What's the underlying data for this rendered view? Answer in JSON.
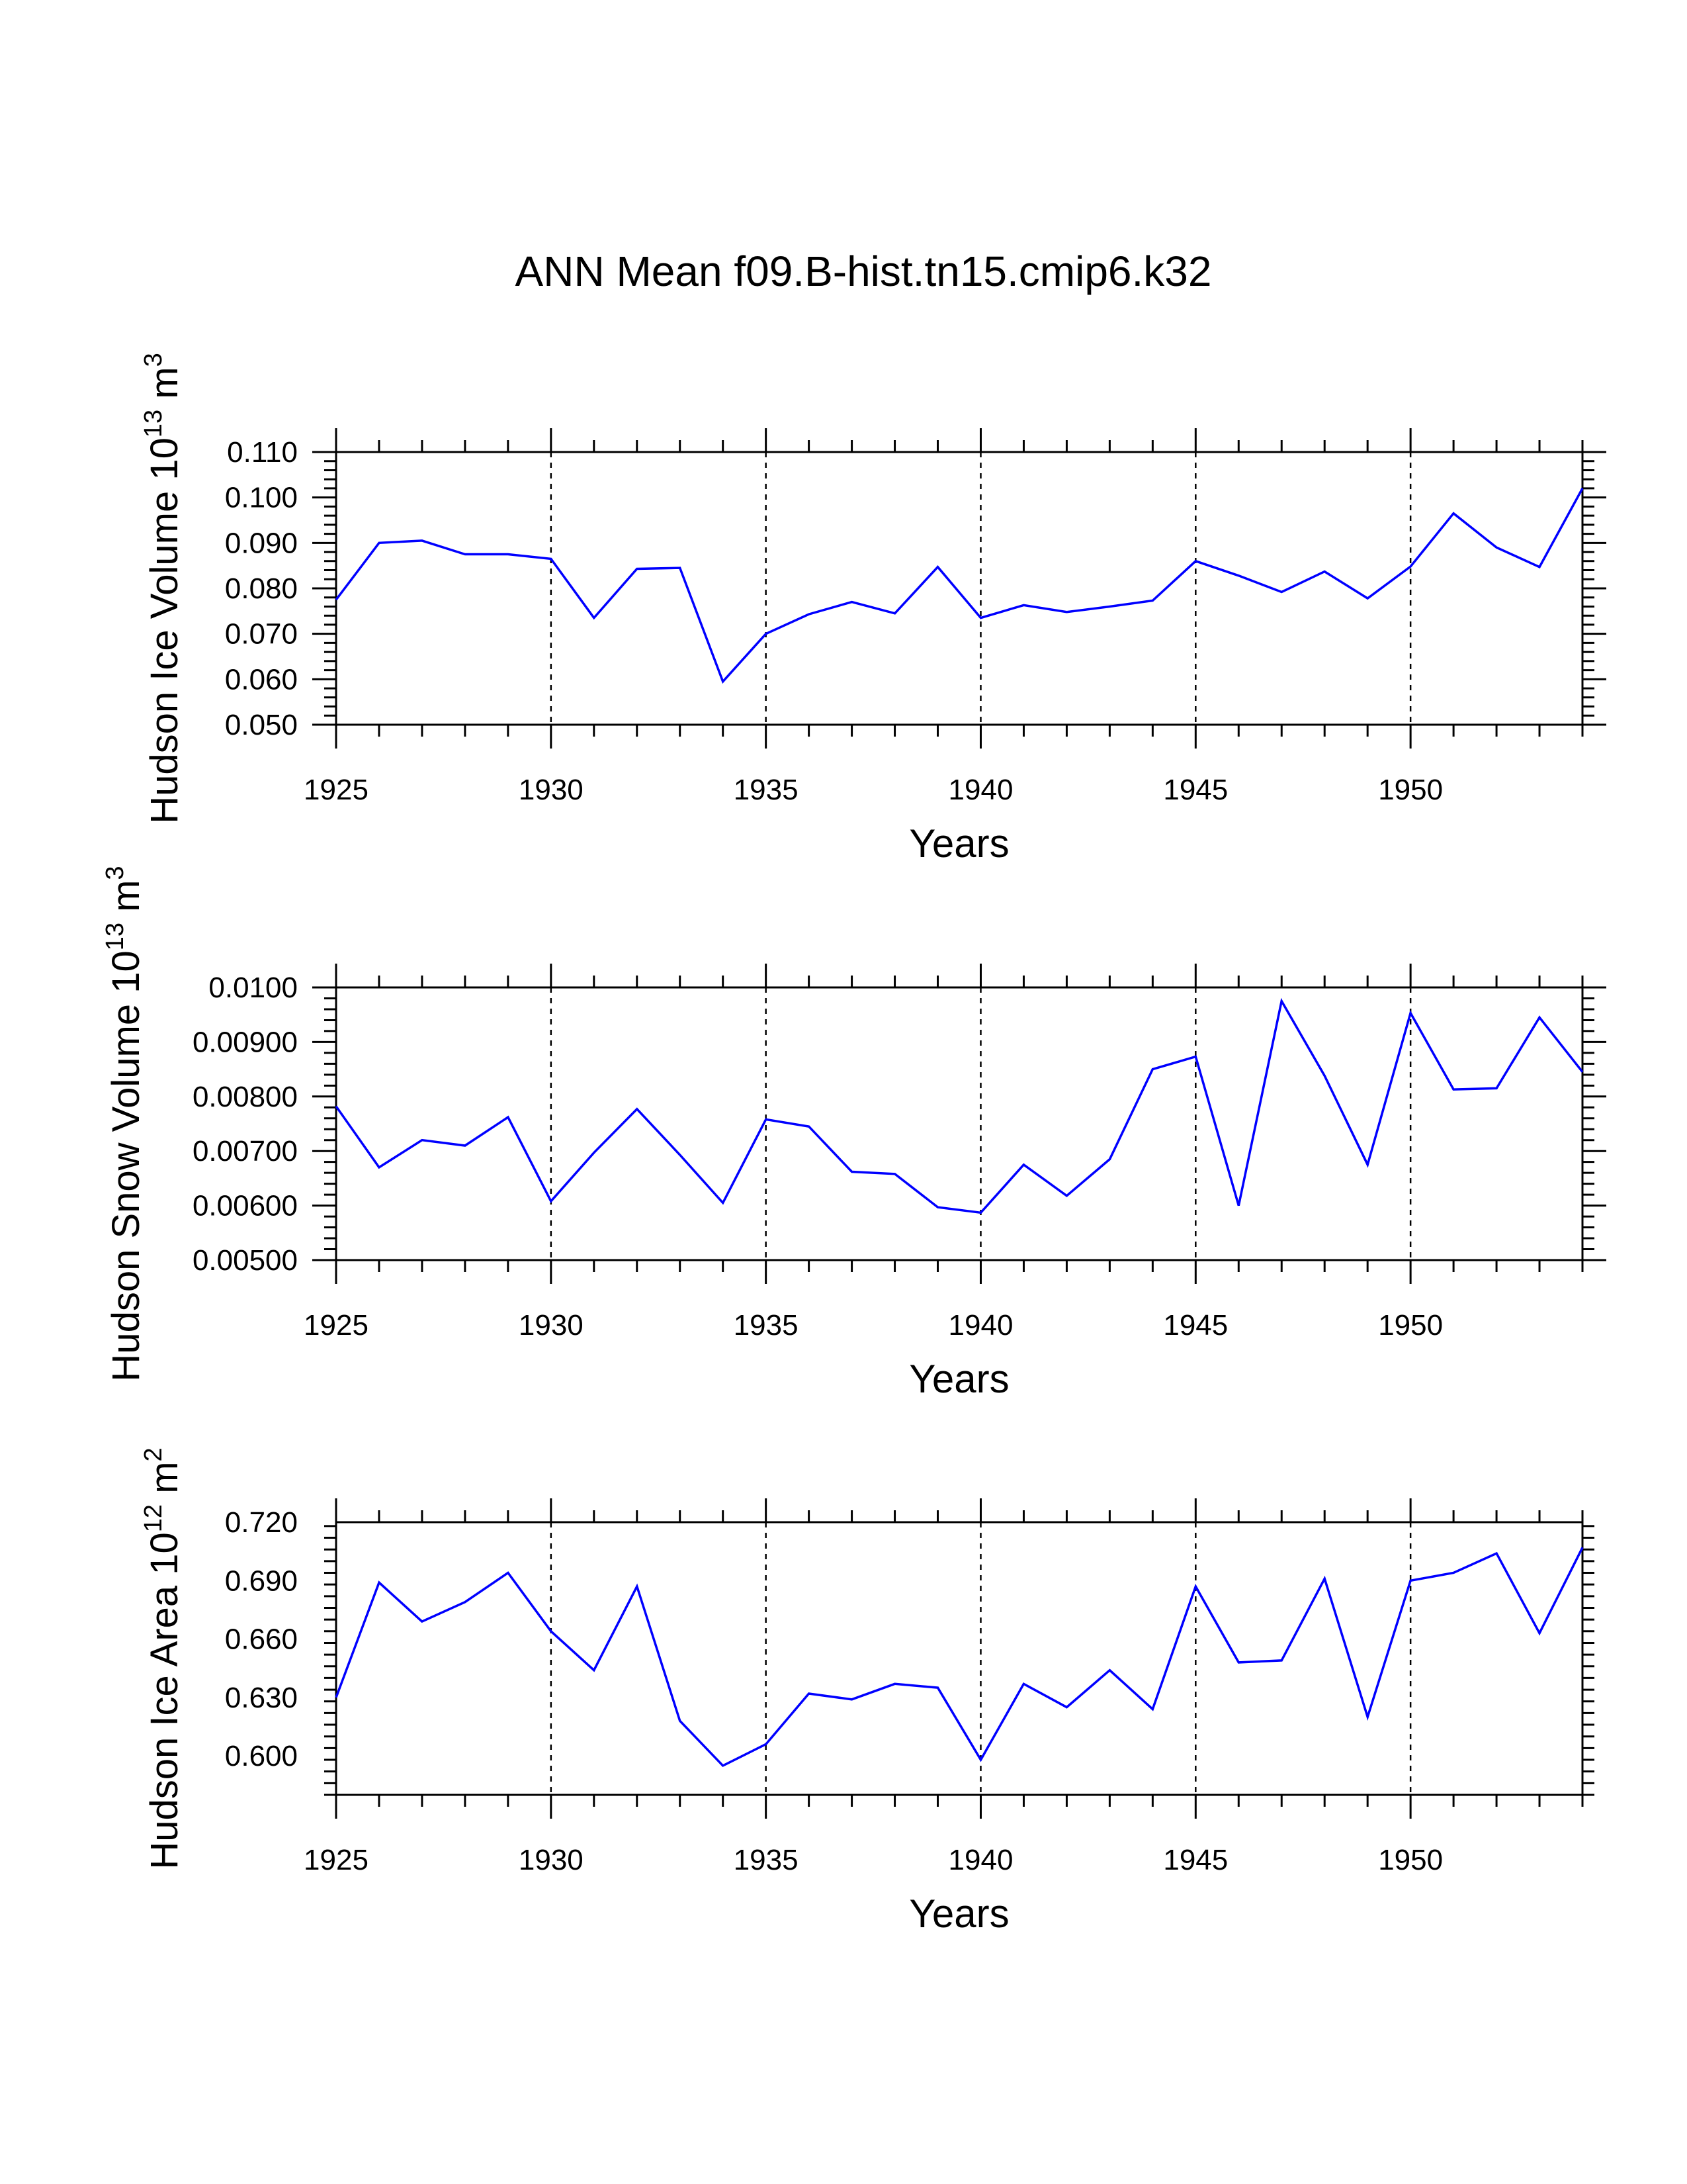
{
  "title": "ANN Mean f09.B-hist.tn15.cmip6.k32",
  "colors": {
    "line": "#0000ff",
    "axis": "#000000",
    "grid": "#000000",
    "background": "#ffffff"
  },
  "chart_data": [
    {
      "type": "line",
      "ylabel": {
        "text": "Hudson Ice Volume 10",
        "exponent": "13",
        "unit": " m",
        "unit_exponent": "3"
      },
      "xlabel": "Years",
      "xlim": [
        1925,
        1954
      ],
      "ylim": [
        0.05,
        0.11
      ],
      "xticks": [
        1925,
        1930,
        1935,
        1940,
        1945,
        1950
      ],
      "xtick_labels": [
        "1925",
        "1930",
        "1935",
        "1940",
        "1945",
        "1950"
      ],
      "yticks": [
        0.05,
        0.06,
        0.07,
        0.08,
        0.09,
        0.1,
        0.11
      ],
      "ytick_labels": [
        "0.050",
        "0.060",
        "0.070",
        "0.080",
        "0.090",
        "0.100",
        "0.110"
      ],
      "grid": "dashed vertical at major x ticks",
      "x": [
        1925,
        1926,
        1927,
        1928,
        1929,
        1930,
        1931,
        1932,
        1933,
        1934,
        1935,
        1936,
        1937,
        1938,
        1939,
        1940,
        1941,
        1942,
        1943,
        1944,
        1945,
        1946,
        1947,
        1948,
        1949,
        1950,
        1951,
        1952,
        1953,
        1954
      ],
      "values": [
        0.0775,
        0.09,
        0.0905,
        0.0875,
        0.0875,
        0.0865,
        0.0735,
        0.0843,
        0.0845,
        0.0595,
        0.07,
        0.0743,
        0.077,
        0.0745,
        0.0847,
        0.0735,
        0.0763,
        0.0748,
        0.076,
        0.0773,
        0.086,
        0.0828,
        0.0792,
        0.0837,
        0.0778,
        0.0848,
        0.0965,
        0.089,
        0.0847,
        0.102
      ]
    },
    {
      "type": "line",
      "ylabel": {
        "text": "Hudson Snow Volume 10",
        "exponent": "13",
        "unit": " m",
        "unit_exponent": "3"
      },
      "xlabel": "Years",
      "xlim": [
        1925,
        1954
      ],
      "ylim": [
        0.005,
        0.01
      ],
      "xticks": [
        1925,
        1930,
        1935,
        1940,
        1945,
        1950
      ],
      "xtick_labels": [
        "1925",
        "1930",
        "1935",
        "1940",
        "1945",
        "1950"
      ],
      "yticks": [
        0.005,
        0.006,
        0.007,
        0.008,
        0.009,
        0.01
      ],
      "ytick_labels": [
        "0.00500",
        "0.00600",
        "0.00700",
        "0.00800",
        "0.00900",
        "0.0100"
      ],
      "grid": "dashed vertical at major x ticks",
      "x": [
        1925,
        1926,
        1927,
        1928,
        1929,
        1930,
        1931,
        1932,
        1933,
        1934,
        1935,
        1936,
        1937,
        1938,
        1939,
        1940,
        1941,
        1942,
        1943,
        1944,
        1945,
        1946,
        1947,
        1948,
        1949,
        1950,
        1951,
        1952,
        1953,
        1954
      ],
      "values": [
        0.00782,
        0.0067,
        0.0072,
        0.0071,
        0.00762,
        0.00608,
        0.00697,
        0.00777,
        0.00693,
        0.00605,
        0.00758,
        0.00745,
        0.00662,
        0.00658,
        0.00597,
        0.00587,
        0.00675,
        0.00618,
        0.00685,
        0.0085,
        0.00873,
        0.006,
        0.00975,
        0.00838,
        0.00675,
        0.00953,
        0.00813,
        0.00815,
        0.00945,
        0.00845
      ]
    },
    {
      "type": "line",
      "ylabel": {
        "text": "Hudson Ice Area 10",
        "exponent": "12",
        "unit": " m",
        "unit_exponent": "2"
      },
      "xlabel": "Years",
      "xlim": [
        1925,
        1954
      ],
      "ylim": [
        0.58,
        0.72
      ],
      "xticks": [
        1925,
        1930,
        1935,
        1940,
        1945,
        1950
      ],
      "xtick_labels": [
        "1925",
        "1930",
        "1935",
        "1940",
        "1945",
        "1950"
      ],
      "yticks": [
        0.6,
        0.63,
        0.66,
        0.69,
        0.72
      ],
      "ytick_labels": [
        "0.600",
        "0.630",
        "0.660",
        "0.690",
        "0.720"
      ],
      "grid": "dashed vertical at major x ticks",
      "x": [
        1925,
        1926,
        1927,
        1928,
        1929,
        1930,
        1931,
        1932,
        1933,
        1934,
        1935,
        1936,
        1937,
        1938,
        1939,
        1940,
        1941,
        1942,
        1943,
        1944,
        1945,
        1946,
        1947,
        1948,
        1949,
        1950,
        1951,
        1952,
        1953,
        1954
      ],
      "values": [
        0.63,
        0.689,
        0.669,
        0.679,
        0.694,
        0.664,
        0.644,
        0.687,
        0.618,
        0.595,
        0.606,
        0.632,
        0.629,
        0.637,
        0.635,
        0.598,
        0.637,
        0.625,
        0.644,
        0.624,
        0.687,
        0.648,
        0.649,
        0.691,
        0.62,
        0.69,
        0.694,
        0.704,
        0.663,
        0.707
      ]
    }
  ]
}
